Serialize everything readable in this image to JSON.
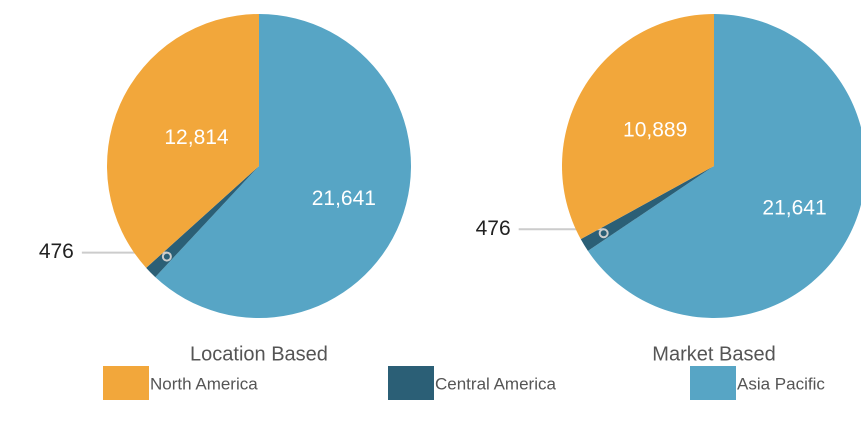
{
  "chart_data": [
    {
      "type": "pie",
      "title": "Location Based",
      "categories": [
        "North America",
        "Central America",
        "Asia Pacific"
      ],
      "values": [
        12814,
        476,
        21641
      ],
      "value_labels": [
        "12,814",
        "476",
        "21,641"
      ],
      "colors": [
        "#f2a73b",
        "#2b5f76",
        "#57a5c5"
      ]
    },
    {
      "type": "pie",
      "title": "Market Based",
      "categories": [
        "North America",
        "Central America",
        "Asia Pacific"
      ],
      "values": [
        10889,
        476,
        21641
      ],
      "value_labels": [
        "10,889",
        "476",
        "21,641"
      ],
      "colors": [
        "#f2a73b",
        "#2b5f76",
        "#57a5c5"
      ]
    }
  ]
}
